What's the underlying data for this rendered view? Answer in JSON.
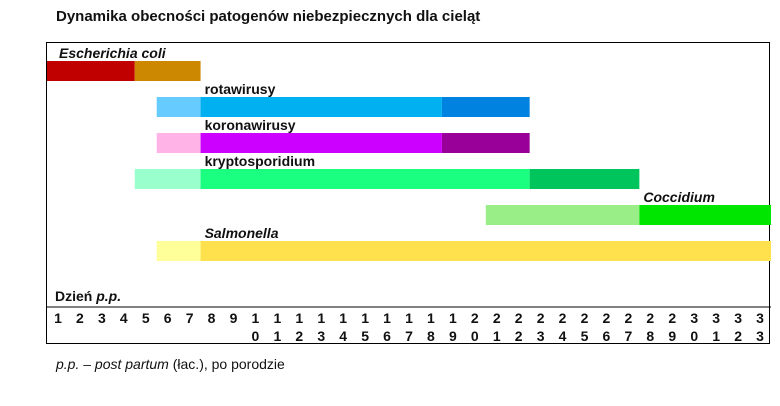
{
  "chart_data": {
    "type": "bar",
    "title": "Dynamika obecności patogenów niebezpiecznych dla cieląt",
    "xlabel_prefix": "Dzień ",
    "xlabel_suffix": "p.p.",
    "x_ticks": [
      "1",
      "2",
      "3",
      "4",
      "5",
      "6",
      "7",
      "8",
      "9",
      "10",
      "11",
      "12",
      "13",
      "14",
      "15",
      "16",
      "17",
      "18",
      "19",
      "20",
      "21",
      "22",
      "23",
      "24",
      "25",
      "26",
      "27",
      "28",
      "29",
      "30",
      "31",
      "32",
      "33"
    ],
    "xlim": [
      1,
      33
    ],
    "series": [
      {
        "name": "Escherichia coli",
        "italic": true,
        "segments": [
          {
            "start": 1,
            "end": 4,
            "color": "#c00000"
          },
          {
            "start": 5,
            "end": 7,
            "color": "#cc8800"
          }
        ]
      },
      {
        "name": "rotawirusy",
        "italic": false,
        "segments": [
          {
            "start": 6,
            "end": 7,
            "color": "#66ccff"
          },
          {
            "start": 8,
            "end": 18,
            "color": "#00b0f0"
          },
          {
            "start": 19,
            "end": 22,
            "color": "#0083e0"
          }
        ]
      },
      {
        "name": "koronawirusy",
        "italic": false,
        "segments": [
          {
            "start": 6,
            "end": 7,
            "color": "#ffb3e6"
          },
          {
            "start": 8,
            "end": 18,
            "color": "#cc00ff"
          },
          {
            "start": 19,
            "end": 22,
            "color": "#990099"
          }
        ]
      },
      {
        "name": "kryptosporidium",
        "italic": false,
        "segments": [
          {
            "start": 5,
            "end": 7,
            "color": "#99ffcc"
          },
          {
            "start": 8,
            "end": 22,
            "color": "#1aff80"
          },
          {
            "start": 23,
            "end": 27,
            "color": "#00c45c"
          }
        ]
      },
      {
        "name": "Coccidium",
        "italic": true,
        "segments": [
          {
            "start": 21,
            "end": 27,
            "color": "#99ee88"
          },
          {
            "start": 28,
            "end": 33,
            "color": "#00e600"
          }
        ]
      },
      {
        "name": "Salmonella",
        "italic": true,
        "segments": [
          {
            "start": 6,
            "end": 7,
            "color": "#ffff99"
          },
          {
            "start": 8,
            "end": 33,
            "color": "#ffe14d"
          }
        ]
      }
    ]
  },
  "footnote": {
    "abbr": "p.p. – ",
    "term": "post partum",
    "rest": " (łac.), po porodzie"
  }
}
